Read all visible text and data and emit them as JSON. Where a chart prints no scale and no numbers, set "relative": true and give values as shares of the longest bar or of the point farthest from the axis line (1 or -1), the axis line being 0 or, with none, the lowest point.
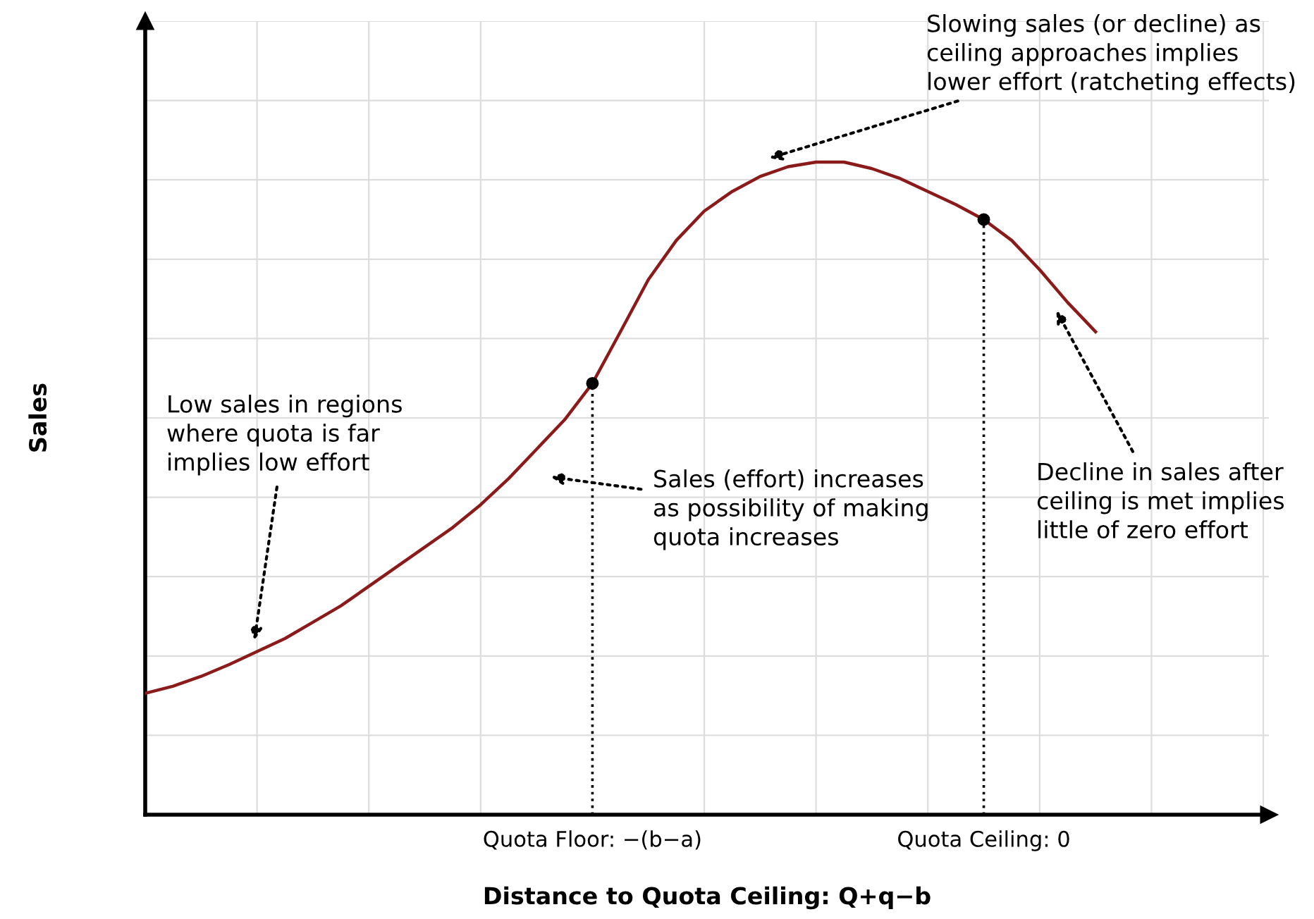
{
  "chart_data": {
    "type": "line",
    "relative": true,
    "xlabel": "Distance to Quota Ceiling: Q+q−b",
    "ylabel": "Sales",
    "categories": [
      null,
      null,
      null,
      null,
      null,
      null,
      null,
      null,
      null,
      null,
      null,
      null,
      null,
      null,
      null,
      null,
      "Quota Floor: −(b−a)",
      null,
      null,
      null,
      null,
      null,
      null,
      null,
      null,
      null,
      null,
      null,
      null,
      null,
      "Quota Ceiling: 0",
      null,
      null,
      null,
      null,
      null,
      null,
      null,
      null,
      null,
      null
    ],
    "grid": true,
    "series": [
      {
        "color": "#8b1a1a",
        "marker": "none",
        "line_style": "solid",
        "values": [
          0.186,
          0.197,
          0.212,
          0.23,
          0.25,
          0.27,
          0.295,
          0.32,
          0.35,
          0.38,
          0.41,
          0.44,
          0.475,
          0.515,
          0.56,
          0.605,
          0.661,
          0.74,
          0.82,
          0.88,
          0.925,
          0.955,
          0.978,
          0.993,
          1.0,
          1.0,
          0.99,
          0.975,
          0.955,
          0.935,
          0.912,
          0.88,
          0.835,
          0.785,
          0.74,
          null,
          null,
          null,
          null,
          null,
          null
        ]
      },
      {
        "type": "lollipop",
        "color": "#000000",
        "marker": "circle",
        "line_style": "dotted",
        "values": [
          null,
          null,
          null,
          null,
          null,
          null,
          null,
          null,
          null,
          null,
          null,
          null,
          null,
          null,
          null,
          null,
          0.661,
          null,
          null,
          null,
          null,
          null,
          null,
          null,
          null,
          null,
          null,
          null,
          null,
          null,
          0.912,
          null,
          null,
          null,
          null,
          null,
          null,
          null,
          null,
          null,
          null
        ]
      }
    ],
    "annotations": [
      "Low sales in regions\nwhere quota is far\nimplies low effort",
      "Sales (effort) increases\nas possibility of making\nquota increases",
      "Slowing sales (or decline) as\nceiling approaches implies\nlower effort (ratcheting effects)",
      "Decline in sales after\nceiling is met implies\nlittle of zero effort"
    ]
  }
}
